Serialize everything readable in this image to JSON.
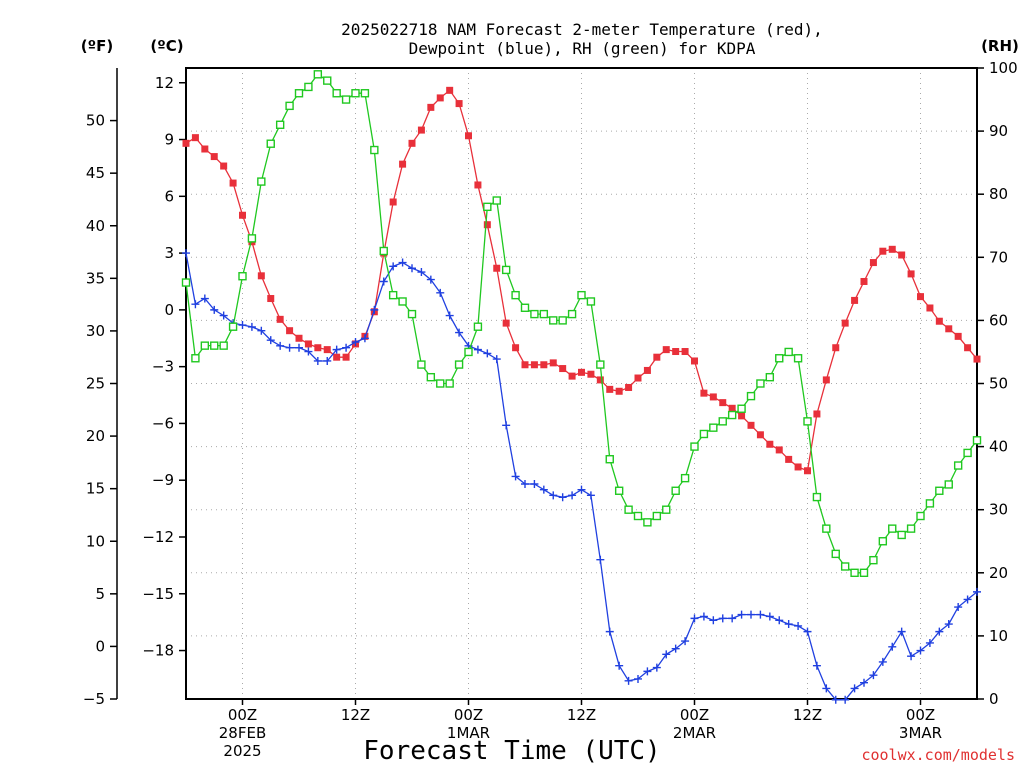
{
  "chart_data": {
    "type": "line",
    "title_line1": "2025022718 NAM Forecast 2-meter Temperature (red),",
    "title_line2": "Dewpoint (blue), RH (green) for KDPA",
    "xlabel": "Forecast Time (UTC)",
    "credit": "coolwx.com/models",
    "axes": {
      "fahrenheit": {
        "label": "(ºF)",
        "ylim": [
          -5,
          55
        ],
        "ticks": [
          -5,
          0,
          5,
          10,
          15,
          20,
          25,
          30,
          35,
          40,
          45,
          50
        ]
      },
      "celsius": {
        "label": "(ºC)",
        "ylim": [
          -20.56,
          12.78
        ],
        "ticks": [
          -18,
          -15,
          -12,
          -9,
          -6,
          -3,
          0,
          3,
          6,
          9,
          12
        ],
        "tick_labels": [
          "−18",
          "−15",
          "−12",
          "−9",
          "−6",
          "−3",
          "0",
          "3",
          "6",
          "9",
          "12"
        ]
      },
      "rh": {
        "label": "(RH)",
        "ylim": [
          0,
          100
        ],
        "ticks": [
          0,
          10,
          20,
          30,
          40,
          50,
          60,
          70,
          80,
          90,
          100
        ]
      }
    },
    "x_range_hours": [
      0,
      84
    ],
    "x_ticks": [
      {
        "hour": 6,
        "lines": [
          "00Z",
          "28FEB",
          "2025"
        ]
      },
      {
        "hour": 18,
        "lines": [
          "12Z"
        ]
      },
      {
        "hour": 30,
        "lines": [
          "00Z",
          "1MAR"
        ]
      },
      {
        "hour": 42,
        "lines": [
          "12Z"
        ]
      },
      {
        "hour": 54,
        "lines": [
          "00Z",
          "2MAR"
        ]
      },
      {
        "hour": 66,
        "lines": [
          "12Z"
        ]
      },
      {
        "hour": 78,
        "lines": [
          "00Z",
          "3MAR"
        ]
      }
    ],
    "grid": true,
    "series": [
      {
        "color": "#e8303a",
        "marker": "filled-square",
        "axis": "celsius",
        "x": [
          0,
          1,
          2,
          3,
          4,
          5,
          6,
          7,
          8,
          9,
          10,
          11,
          12,
          13,
          14,
          15,
          16,
          17,
          18,
          19,
          20,
          21,
          22,
          23,
          24,
          25,
          26,
          27,
          28,
          29,
          30,
          31,
          32,
          33,
          34,
          35,
          36,
          37,
          38,
          39,
          40,
          41,
          42,
          43,
          44,
          45,
          46,
          47,
          48,
          49,
          50,
          51,
          52,
          53,
          54,
          55,
          56,
          57,
          58,
          59,
          60,
          61,
          62,
          63,
          64,
          65,
          66,
          67,
          68,
          69,
          70,
          71,
          72,
          73,
          74,
          75,
          76,
          77,
          78,
          79,
          80,
          81,
          82,
          83,
          84
        ],
        "values": [
          8.8,
          9.1,
          8.5,
          8.1,
          7.6,
          6.7,
          5.0,
          3.6,
          1.8,
          0.6,
          -0.5,
          -1.1,
          -1.5,
          -1.8,
          -2.0,
          -2.1,
          -2.5,
          -2.5,
          -1.8,
          -1.4,
          -0.1,
          3.0,
          5.7,
          7.7,
          8.8,
          9.5,
          10.7,
          11.2,
          11.6,
          10.9,
          9.2,
          6.6,
          4.5,
          2.2,
          -0.7,
          -2.0,
          -2.9,
          -2.9,
          -2.9,
          -2.8,
          -3.1,
          -3.5,
          -3.3,
          -3.4,
          -3.7,
          -4.2,
          -4.3,
          -4.1,
          -3.6,
          -3.2,
          -2.5,
          -2.1,
          -2.2,
          -2.2,
          -2.7,
          -4.4,
          -4.6,
          -4.9,
          -5.2,
          -5.6,
          -6.1,
          -6.6,
          -7.1,
          -7.4,
          -7.9,
          -8.3,
          -8.5,
          -5.5,
          -3.7,
          -2.0,
          -0.7,
          0.5,
          1.5,
          2.5,
          3.1,
          3.2,
          2.9,
          1.9,
          0.7,
          0.1,
          -0.6,
          -1.0,
          -1.4,
          -2.0,
          -2.6
        ]
      },
      {
        "color": "#2040e0",
        "marker": "plus",
        "axis": "celsius",
        "x": [
          0,
          1,
          2,
          3,
          4,
          5,
          6,
          7,
          8,
          9,
          10,
          11,
          12,
          13,
          14,
          15,
          16,
          17,
          18,
          19,
          20,
          21,
          22,
          23,
          24,
          25,
          26,
          27,
          28,
          29,
          30,
          31,
          32,
          33,
          34,
          35,
          36,
          37,
          38,
          39,
          40,
          41,
          42,
          43,
          44,
          45,
          46,
          47,
          48,
          49,
          50,
          51,
          52,
          53,
          54,
          55,
          56,
          57,
          58,
          59,
          60,
          61,
          62,
          63,
          64,
          65,
          66,
          67,
          68,
          69,
          70,
          71,
          72,
          73,
          74,
          75,
          76,
          77,
          78,
          79,
          80,
          81,
          82,
          83,
          84
        ],
        "values": [
          3.0,
          0.3,
          0.6,
          0.0,
          -0.3,
          -0.7,
          -0.8,
          -0.9,
          -1.1,
          -1.6,
          -1.9,
          -2.0,
          -2.0,
          -2.2,
          -2.7,
          -2.7,
          -2.1,
          -2.0,
          -1.7,
          -1.5,
          0.0,
          1.5,
          2.3,
          2.5,
          2.2,
          2.0,
          1.6,
          0.9,
          -0.3,
          -1.2,
          -1.9,
          -2.1,
          -2.3,
          -2.6,
          -6.1,
          -8.8,
          -9.2,
          -9.2,
          -9.5,
          -9.8,
          -9.9,
          -9.8,
          -9.5,
          -9.8,
          -13.2,
          -17.0,
          -18.8,
          -19.6,
          -19.5,
          -19.1,
          -18.9,
          -18.2,
          -17.9,
          -17.5,
          -16.3,
          -16.2,
          -16.4,
          -16.3,
          -16.3,
          -16.1,
          -16.1,
          -16.1,
          -16.2,
          -16.4,
          -16.6,
          -16.7,
          -17.0,
          -18.8,
          -20.0,
          -20.6,
          -20.6,
          -20.0,
          -19.7,
          -19.3,
          -18.6,
          -17.8,
          -17.0,
          -18.3,
          -18.0,
          -17.6,
          -17.0,
          -16.6,
          -15.7,
          -15.3,
          -14.9
        ]
      },
      {
        "color": "#20c820",
        "marker": "open-square",
        "axis": "rh",
        "x": [
          0,
          1,
          2,
          3,
          4,
          5,
          6,
          7,
          8,
          9,
          10,
          11,
          12,
          13,
          14,
          15,
          16,
          17,
          18,
          19,
          20,
          21,
          22,
          23,
          24,
          25,
          26,
          27,
          28,
          29,
          30,
          31,
          32,
          33,
          34,
          35,
          36,
          37,
          38,
          39,
          40,
          41,
          42,
          43,
          44,
          45,
          46,
          47,
          48,
          49,
          50,
          51,
          52,
          53,
          54,
          55,
          56,
          57,
          58,
          59,
          60,
          61,
          62,
          63,
          64,
          65,
          66,
          67,
          68,
          69,
          70,
          71,
          72,
          73,
          74,
          75,
          76,
          77,
          78,
          79,
          80,
          81,
          82,
          83,
          84
        ],
        "values": [
          66,
          54,
          56,
          56,
          56,
          59,
          67,
          73,
          82,
          88,
          91,
          94,
          96,
          97,
          99,
          98,
          96,
          95,
          96,
          96,
          87,
          71,
          64,
          63,
          61,
          53,
          51,
          50,
          50,
          53,
          55,
          59,
          78,
          79,
          68,
          64,
          62,
          61,
          61,
          60,
          60,
          61,
          64,
          63,
          53,
          38,
          33,
          30,
          29,
          28,
          29,
          30,
          33,
          35,
          40,
          42,
          43,
          44,
          45,
          46,
          48,
          50,
          51,
          54,
          55,
          54,
          44,
          32,
          27,
          23,
          21,
          20,
          20,
          22,
          25,
          27,
          26,
          27,
          29,
          31,
          33,
          34,
          37,
          39,
          41
        ]
      }
    ]
  }
}
